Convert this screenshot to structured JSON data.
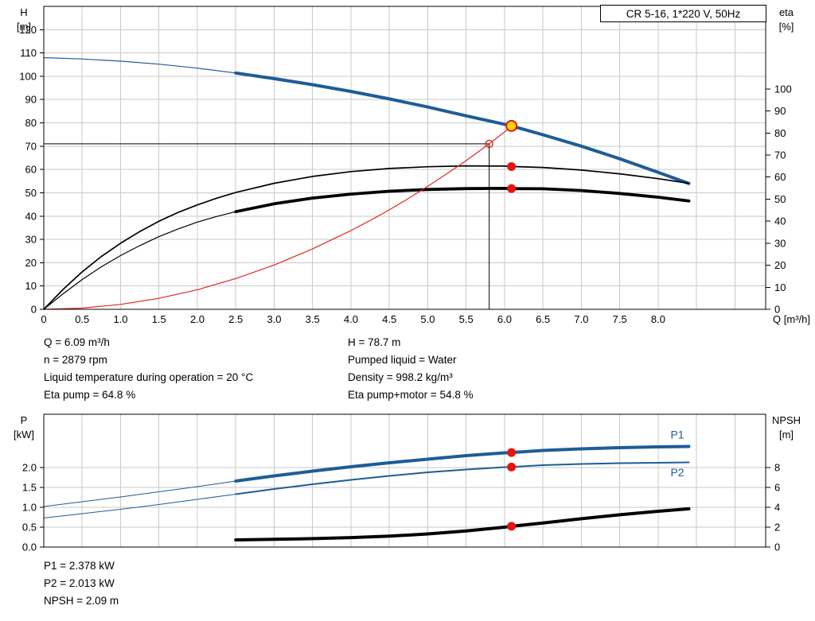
{
  "title_box": {
    "label": "CR 5-16, 1*220 V, 50Hz"
  },
  "colors": {
    "curve_blue": "#1e5c97",
    "curve_black": "#000000",
    "curve_red": "#df2a20",
    "dot_red": "#e81414",
    "op_fill": "#ffd400",
    "grid": "#c9c9c9"
  },
  "info_top": {
    "left": [
      "Q = 6.09 m³/h",
      "n = 2879 rpm",
      "Liquid temperature during operation = 20 °C",
      "Eta pump = 64.8 %"
    ],
    "right": [
      "H = 78.7 m",
      "Pumped liquid = Water",
      "Density = 998.2 kg/m³",
      "Eta pump+motor = 54.8 %"
    ]
  },
  "info_bottom": [
    "P1 = 2.378 kW",
    "P2 = 2.013 kW",
    "NPSH = 2.09 m"
  ],
  "chart_data": [
    {
      "type": "line",
      "name": "head-efficiency-chart",
      "title": "CR 5-16, 1*220 V, 50Hz",
      "x": {
        "label": "Q [m³/h]",
        "min": 0,
        "max": 9.4,
        "grid_step": 0.5,
        "grid_max": 9.0,
        "ticks": [
          0,
          0.5,
          1,
          1.5,
          2,
          2.5,
          3,
          3.5,
          4,
          4.5,
          5,
          5.5,
          6,
          6.5,
          7,
          7.5,
          8
        ],
        "tick_labels": [
          "0",
          "0.5",
          "1.0",
          "1.5",
          "2.0",
          "2.5",
          "3.0",
          "3.5",
          "4.0",
          "4.5",
          "5.0",
          "5.5",
          "6.0",
          "6.5",
          "7.0",
          "7.5",
          "8.0"
        ]
      },
      "left": {
        "label": [
          "H",
          "[m]"
        ],
        "min": 0,
        "max": 130,
        "ticks": [
          0,
          10,
          20,
          30,
          40,
          50,
          60,
          70,
          80,
          90,
          100,
          110,
          120
        ]
      },
      "right": {
        "label": [
          "eta",
          "[%]"
        ],
        "min": 0,
        "max": 137.5,
        "ticks": [
          0,
          10,
          20,
          30,
          40,
          50,
          60,
          70,
          80,
          90,
          100
        ]
      },
      "series": [
        {
          "name": "pump-head-curve",
          "axis": "left",
          "color": "#1e5c97",
          "thin": 1.2,
          "thick": 4,
          "split": 2.5,
          "points": [
            [
              0,
              108
            ],
            [
              0.5,
              107.4
            ],
            [
              1,
              106.5
            ],
            [
              1.5,
              105.2
            ],
            [
              2,
              103.5
            ],
            [
              2.5,
              101.4
            ],
            [
              3,
              99.0
            ],
            [
              3.5,
              96.4
            ],
            [
              4,
              93.5
            ],
            [
              4.5,
              90.3
            ],
            [
              5,
              86.8
            ],
            [
              5.5,
              83.0
            ],
            [
              6,
              79.4
            ],
            [
              6.09,
              78.7
            ],
            [
              6.5,
              74.9
            ],
            [
              7,
              70.0
            ],
            [
              7.5,
              64.6
            ],
            [
              8,
              58.8
            ],
            [
              8.4,
              54.0
            ]
          ]
        },
        {
          "name": "eta-pump-curve",
          "axis": "right",
          "color": "#000000",
          "width": 1.7,
          "points": [
            [
              0,
              0
            ],
            [
              0.25,
              9
            ],
            [
              0.5,
              17
            ],
            [
              0.75,
              24
            ],
            [
              1,
              30
            ],
            [
              1.25,
              35.3
            ],
            [
              1.5,
              40
            ],
            [
              1.75,
              44
            ],
            [
              2,
              47.4
            ],
            [
              2.25,
              50.4
            ],
            [
              2.5,
              53
            ],
            [
              3,
              57.2
            ],
            [
              3.5,
              60.3
            ],
            [
              4,
              62.5
            ],
            [
              4.5,
              63.9
            ],
            [
              5,
              64.7
            ],
            [
              5.5,
              65.1
            ],
            [
              6,
              65.0
            ],
            [
              6.09,
              64.8
            ],
            [
              6.5,
              64.4
            ],
            [
              7,
              63.2
            ],
            [
              7.5,
              61.5
            ],
            [
              8,
              59.3
            ],
            [
              8.4,
              57.2
            ]
          ]
        },
        {
          "name": "eta-pump-motor-curve",
          "axis": "right",
          "color": "#000000",
          "thin": 1.2,
          "thick": 3.8,
          "split": 2.5,
          "points": [
            [
              0,
              0
            ],
            [
              0.25,
              7
            ],
            [
              0.5,
              13.5
            ],
            [
              0.75,
              19.3
            ],
            [
              1,
              24.4
            ],
            [
              1.25,
              28.9
            ],
            [
              1.5,
              33
            ],
            [
              1.75,
              36.5
            ],
            [
              2,
              39.6
            ],
            [
              2.25,
              42.1
            ],
            [
              2.5,
              44.3
            ],
            [
              3,
              47.9
            ],
            [
              3.5,
              50.5
            ],
            [
              4,
              52.3
            ],
            [
              4.5,
              53.6
            ],
            [
              5,
              54.4
            ],
            [
              5.5,
              54.8
            ],
            [
              6,
              54.9
            ],
            [
              6.09,
              54.8
            ],
            [
              6.5,
              54.7
            ],
            [
              7,
              53.9
            ],
            [
              7.5,
              52.6
            ],
            [
              8,
              50.9
            ],
            [
              8.4,
              49.2
            ]
          ]
        },
        {
          "name": "system-curve",
          "axis": "left",
          "color": "#df2a20",
          "width": 1.2,
          "points": [
            [
              0,
              0
            ],
            [
              0.5,
              0.5
            ],
            [
              1,
              2.1
            ],
            [
              1.5,
              4.7
            ],
            [
              2,
              8.4
            ],
            [
              2.5,
              13.2
            ],
            [
              3,
              19.0
            ],
            [
              3.5,
              25.9
            ],
            [
              4,
              33.8
            ],
            [
              4.25,
              38.1
            ],
            [
              4.5,
              42.7
            ],
            [
              4.75,
              47.6
            ],
            [
              5,
              52.8
            ],
            [
              5.25,
              58.2
            ],
            [
              5.5,
              63.8
            ],
            [
              5.75,
              69.8
            ],
            [
              5.8,
              71
            ],
            [
              6,
              76.1
            ],
            [
              6.09,
              78.7
            ]
          ]
        }
      ],
      "annotations": {
        "duty_ref": {
          "q": 5.8,
          "h": 71
        },
        "op_point": {
          "q": 6.09,
          "h": 78.7
        },
        "dots": [
          {
            "q": 6.09,
            "v": 64.8,
            "axis": "right"
          },
          {
            "q": 6.09,
            "v": 54.8,
            "axis": "right"
          }
        ]
      }
    },
    {
      "type": "line",
      "name": "power-npsh-chart",
      "x": {
        "label": null,
        "min": 0,
        "max": 9.4,
        "grid_step": 0.5,
        "grid_max": 9.0,
        "ticks": [],
        "tick_labels": null
      },
      "left": {
        "label": [
          "P",
          "[kW]"
        ],
        "min": 0,
        "max": 3.34,
        "ticks": [
          0,
          0.5,
          1,
          1.5,
          2
        ],
        "tick_labels": [
          "0.0",
          "0.5",
          "1.0",
          "1.5",
          "2.0"
        ]
      },
      "right": {
        "label": [
          "NPSH",
          "[m]"
        ],
        "min": 0,
        "max": 13.36,
        "ticks": [
          0,
          2,
          4,
          6,
          8
        ]
      },
      "series": [
        {
          "name": "p1-power-curve",
          "axis": "left",
          "color": "#1e5c97",
          "thin": 1,
          "thick": 4,
          "split": 2.5,
          "points": [
            [
              0,
              1.02
            ],
            [
              0.5,
              1.14
            ],
            [
              1,
              1.26
            ],
            [
              1.5,
              1.39
            ],
            [
              2,
              1.52
            ],
            [
              2.5,
              1.66
            ],
            [
              3,
              1.79
            ],
            [
              3.5,
              1.91
            ],
            [
              4,
              2.02
            ],
            [
              4.5,
              2.12
            ],
            [
              5,
              2.21
            ],
            [
              5.5,
              2.3
            ],
            [
              6,
              2.37
            ],
            [
              6.09,
              2.378
            ],
            [
              6.5,
              2.43
            ],
            [
              7,
              2.47
            ],
            [
              7.5,
              2.5
            ],
            [
              8,
              2.52
            ],
            [
              8.4,
              2.53
            ]
          ]
        },
        {
          "name": "p2-power-curve",
          "axis": "left",
          "color": "#1e5c97",
          "thin": 1,
          "thick": 2,
          "split": 2.5,
          "points": [
            [
              0,
              0.73
            ],
            [
              0.5,
              0.84
            ],
            [
              1,
              0.95
            ],
            [
              1.5,
              1.07
            ],
            [
              2,
              1.2
            ],
            [
              2.5,
              1.33
            ],
            [
              3,
              1.46
            ],
            [
              3.5,
              1.58
            ],
            [
              4,
              1.69
            ],
            [
              4.5,
              1.79
            ],
            [
              5,
              1.88
            ],
            [
              5.5,
              1.95
            ],
            [
              6,
              2.01
            ],
            [
              6.09,
              2.013
            ],
            [
              6.5,
              2.06
            ],
            [
              7,
              2.09
            ],
            [
              7.5,
              2.11
            ],
            [
              8,
              2.12
            ],
            [
              8.4,
              2.13
            ]
          ]
        },
        {
          "name": "npsh-curve",
          "axis": "right",
          "color": "#000000",
          "width": 4,
          "points": [
            [
              2.5,
              0.72
            ],
            [
              3,
              0.78
            ],
            [
              3.5,
              0.85
            ],
            [
              4,
              0.95
            ],
            [
              4.5,
              1.1
            ],
            [
              5,
              1.32
            ],
            [
              5.5,
              1.62
            ],
            [
              6,
              2.0
            ],
            [
              6.09,
              2.09
            ],
            [
              6.5,
              2.42
            ],
            [
              7,
              2.85
            ],
            [
              7.5,
              3.25
            ],
            [
              8,
              3.6
            ],
            [
              8.4,
              3.85
            ]
          ]
        }
      ],
      "annotations": {
        "dots": [
          {
            "q": 6.09,
            "v": 2.378,
            "axis": "left"
          },
          {
            "q": 6.09,
            "v": 2.013,
            "axis": "left"
          },
          {
            "q": 6.09,
            "v": 2.09,
            "axis": "right"
          }
        ],
        "labels": [
          {
            "text": "P1",
            "q": 8.25,
            "v": 2.73,
            "axis": "left",
            "color": "#1e5c97"
          },
          {
            "text": "P2",
            "q": 8.25,
            "v": 1.78,
            "axis": "left",
            "color": "#1e5c97"
          }
        ]
      }
    }
  ]
}
